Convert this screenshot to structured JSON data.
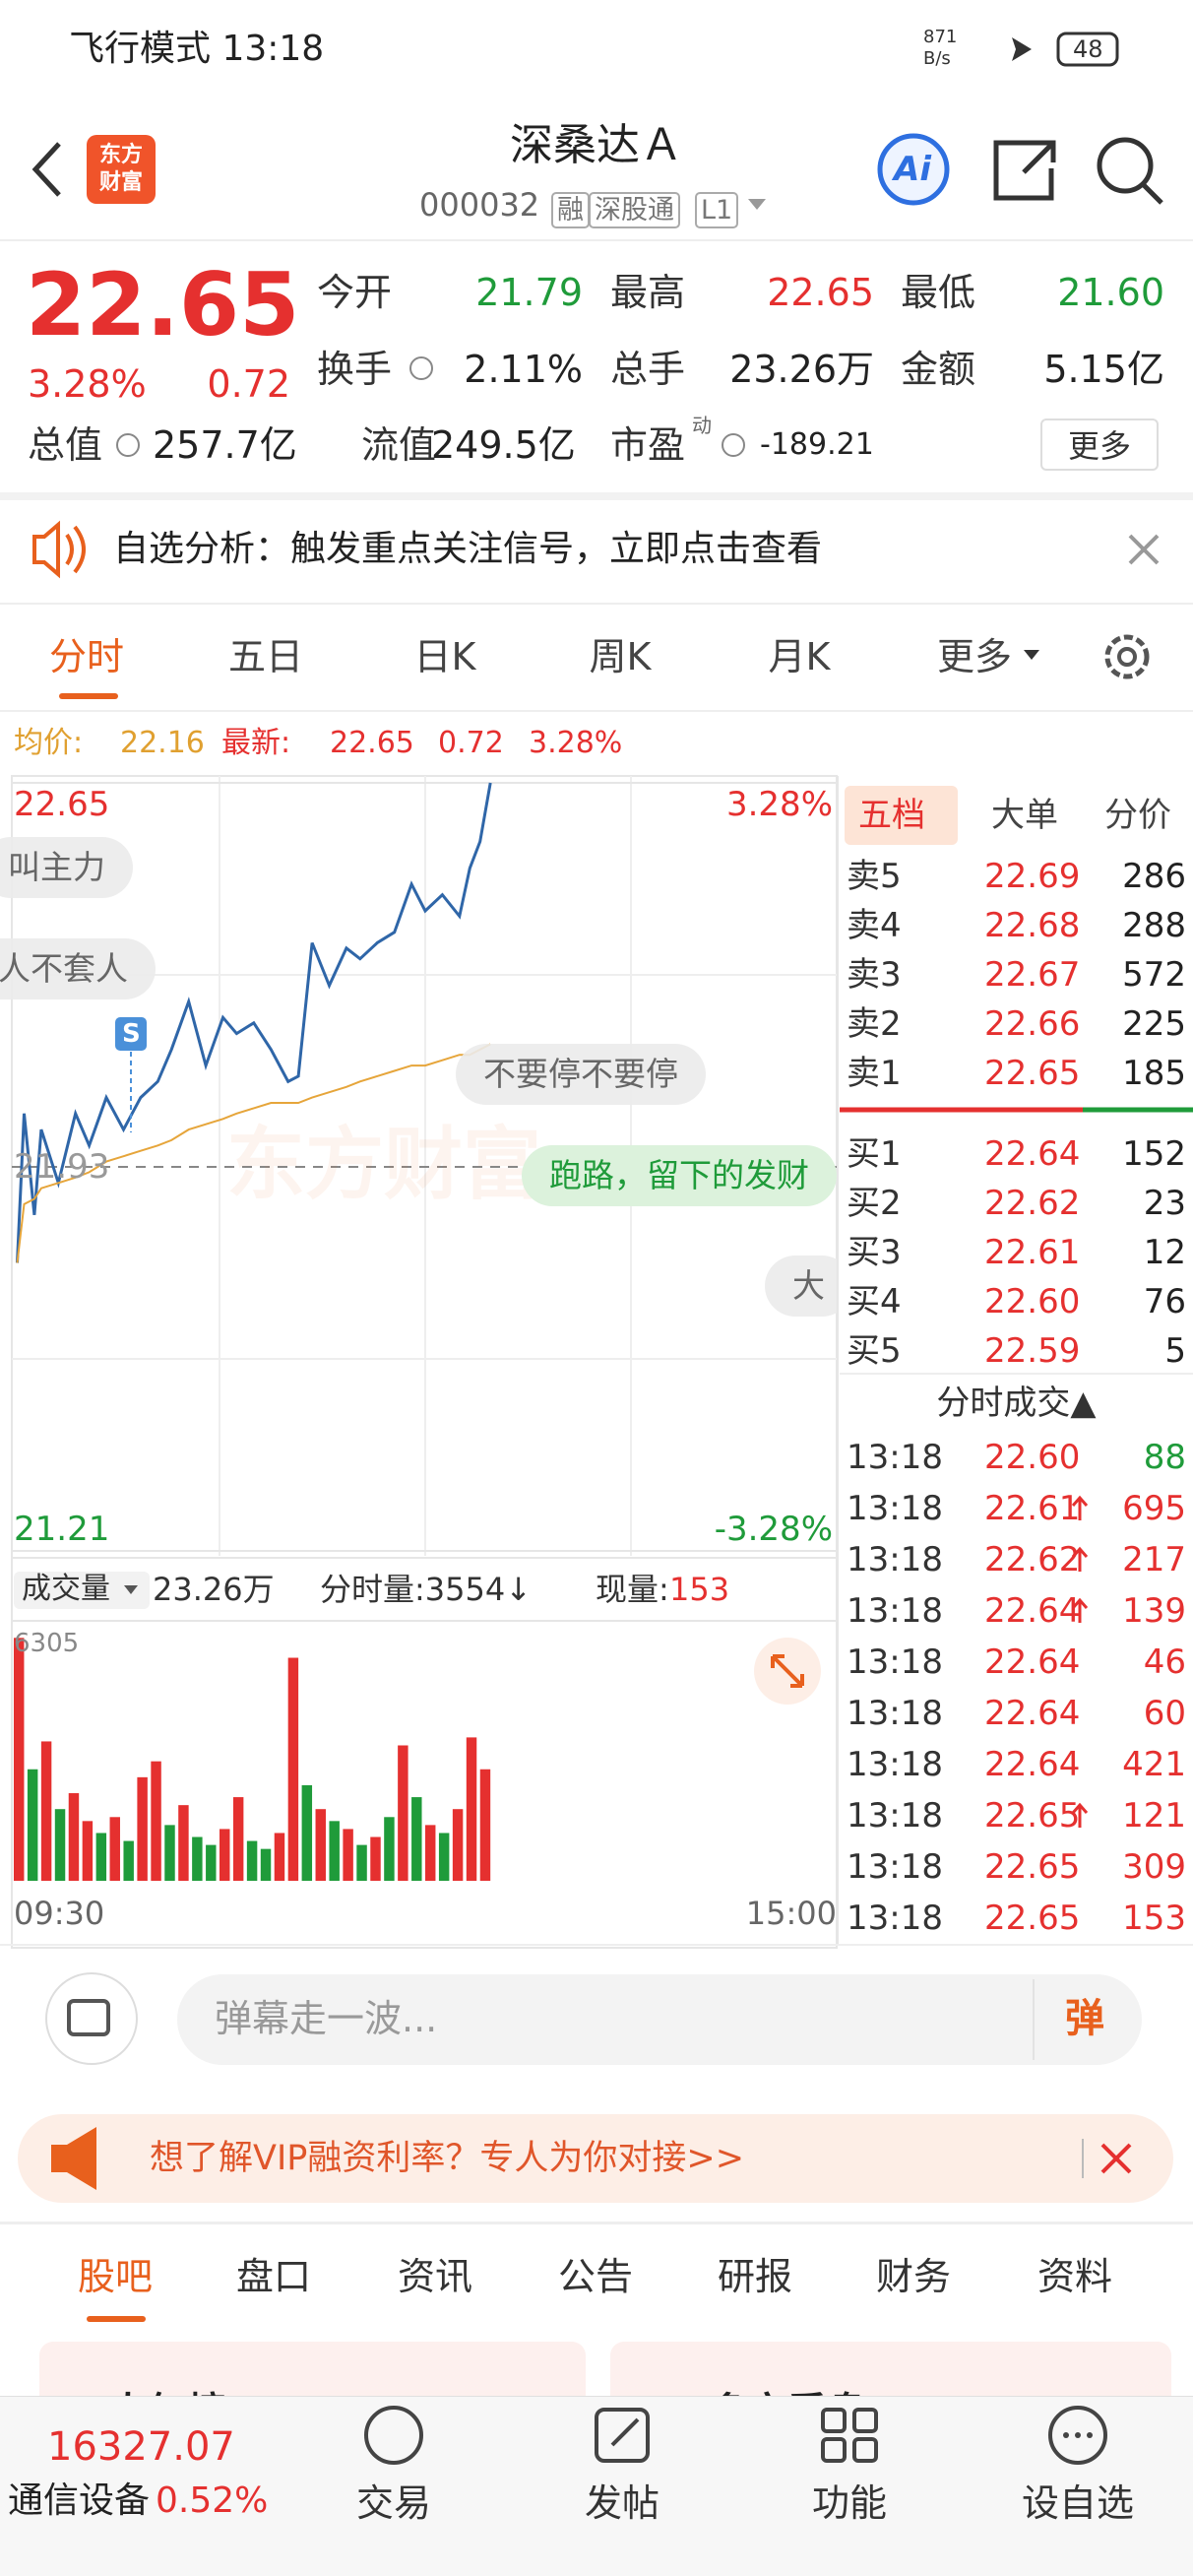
{
  "status_bar": {
    "mode_time": "飞行模式 13:18",
    "net_speed": "871",
    "net_unit": "B/s",
    "battery": "48"
  },
  "header": {
    "logo_lines": [
      "东方",
      "财富"
    ],
    "title": "深桑达Ａ",
    "code": "000032",
    "tags": [
      "融",
      "深股通",
      "L1"
    ],
    "ai": "Ai"
  },
  "quote": {
    "price": "22.65",
    "change_pct": "3.28%",
    "change": "0.72",
    "stats": [
      {
        "label": "今开",
        "value": "21.79",
        "color": "#1f9b3a"
      },
      {
        "label": "最高",
        "value": "22.65",
        "color": "#e5302f"
      },
      {
        "label": "最低",
        "value": "21.60",
        "color": "#1f9b3a"
      },
      {
        "label": "换手",
        "value": "2.11%",
        "color": "#222222"
      },
      {
        "label": "总手",
        "value": "23.26万",
        "color": "#222222"
      },
      {
        "label": "金额",
        "value": "5.15亿",
        "color": "#222222"
      },
      {
        "label": "总值",
        "value": "257.7亿",
        "color": "#222222"
      },
      {
        "label": "流值",
        "value": "249.5亿",
        "color": "#222222"
      },
      {
        "label": "市盈",
        "value": "-189.21",
        "color": "#222222"
      }
    ],
    "pe_sup": "动",
    "more": "更多"
  },
  "notice": {
    "text": "自选分析：触发重点关注信号，立即点击查看"
  },
  "tabs": [
    "分时",
    "五日",
    "日K",
    "周K",
    "月K",
    "更多"
  ],
  "info_line": {
    "avg_label": "均价:",
    "avg": "22.16",
    "latest_label": "最新:",
    "latest": "22.65",
    "change": "0.72",
    "pct": "3.28%"
  },
  "chart_overlay": {
    "watermark": "东方财富",
    "danmaku": [
      "叫主力",
      "人不套人",
      "不要停不要停",
      "跑路，留下的发财",
      "大"
    ],
    "marker": "S"
  },
  "volume_header": {
    "label": "成交量",
    "total": "23.26万",
    "minute_vol": "分时量:3554↓",
    "current_label": "现量:",
    "current": "153"
  },
  "chart_data": [
    {
      "type": "line",
      "x": [
        1,
        3,
        6,
        8,
        13,
        18,
        22,
        27,
        32,
        37,
        42,
        46,
        51,
        56,
        61,
        65,
        70,
        75,
        80,
        83,
        87,
        92,
        97,
        101,
        106,
        111,
        116,
        120,
        125,
        130,
        133,
        136,
        139
      ],
      "series": [
        {
          "color": "#2f66a8",
          "values": [
            21.75,
            22.03,
            21.84,
            22.0,
            21.9,
            22.03,
            21.97,
            22.06,
            22.0,
            22.06,
            22.09,
            22.15,
            22.24,
            22.12,
            22.21,
            22.18,
            22.2,
            22.15,
            22.09,
            22.1,
            22.35,
            22.27,
            22.34,
            22.32,
            22.35,
            22.37,
            22.46,
            22.41,
            22.44,
            22.4,
            22.49,
            22.54,
            22.65
          ]
        },
        {
          "color": "#e6a53a",
          "values": [
            21.75,
            21.86,
            21.87,
            21.89,
            21.9,
            21.91,
            21.92,
            21.94,
            21.95,
            21.96,
            21.97,
            21.98,
            22.0,
            22.01,
            22.02,
            22.03,
            22.04,
            22.05,
            22.05,
            22.05,
            22.06,
            22.07,
            22.08,
            22.09,
            22.1,
            22.11,
            22.12,
            22.12,
            22.13,
            22.14,
            22.14,
            22.15,
            22.16
          ]
        }
      ],
      "xlim": [
        0,
        240
      ],
      "ylim": [
        21.21,
        22.65
      ],
      "yticks": [
        21.21,
        21.93,
        22.65
      ],
      "y2lim": [
        -3.28,
        3.28
      ],
      "y2ticks": [
        {
          "value": -3.28,
          "label": "-3.28%"
        },
        {
          "value": 3.28,
          "label": "3.28%"
        }
      ],
      "grid": true
    },
    {
      "type": "bar",
      "x": [
        0,
        4,
        8,
        12,
        16,
        20,
        24,
        28,
        32,
        36,
        40,
        44,
        48,
        52,
        56,
        60,
        64,
        68,
        72,
        76,
        80,
        84,
        88,
        92,
        96,
        100,
        104,
        108,
        112,
        116,
        120,
        124,
        128,
        132,
        136
      ],
      "values": [
        6100,
        2800,
        3500,
        1800,
        2200,
        1500,
        1200,
        1600,
        1000,
        2600,
        3000,
        1400,
        1900,
        1100,
        900,
        1300,
        2100,
        1000,
        800,
        1200,
        5600,
        2400,
        1800,
        1500,
        1300,
        900,
        1100,
        1600,
        3400,
        2100,
        1400,
        1200,
        1800,
        3600,
        2800
      ],
      "colors": [
        "#e5302f",
        "#1f9b3a",
        "#e5302f",
        "#1f9b3a",
        "#e5302f",
        "#e5302f",
        "#1f9b3a",
        "#e5302f",
        "#1f9b3a",
        "#e5302f",
        "#e5302f",
        "#1f9b3a",
        "#e5302f",
        "#1f9b3a",
        "#1f9b3a",
        "#e5302f",
        "#e5302f",
        "#1f9b3a",
        "#1f9b3a",
        "#e5302f",
        "#e5302f",
        "#1f9b3a",
        "#e5302f",
        "#1f9b3a",
        "#e5302f",
        "#1f9b3a",
        "#e5302f",
        "#1f9b3a",
        "#e5302f",
        "#1f9b3a",
        "#e5302f",
        "#1f9b3a",
        "#e5302f",
        "#e5302f",
        "#e5302f"
      ],
      "xlim": [
        0,
        240
      ],
      "xticks": [
        {
          "value": 0,
          "label": "09:30"
        },
        {
          "value": 240,
          "label": "15:00"
        }
      ],
      "ylim": [
        0,
        6305
      ],
      "yticks": [
        6305
      ]
    }
  ],
  "order_book": {
    "tabs": [
      "五档",
      "大单",
      "分价"
    ],
    "asks": [
      {
        "label": "卖5",
        "price": "22.69",
        "volume": "286"
      },
      {
        "label": "卖4",
        "price": "22.68",
        "volume": "288"
      },
      {
        "label": "卖3",
        "price": "22.67",
        "volume": "572"
      },
      {
        "label": "卖2",
        "price": "22.66",
        "volume": "225"
      },
      {
        "label": "卖1",
        "price": "22.65",
        "volume": "185"
      }
    ],
    "bids": [
      {
        "label": "买1",
        "price": "22.64",
        "volume": "152"
      },
      {
        "label": "买2",
        "price": "22.62",
        "volume": "23"
      },
      {
        "label": "买3",
        "price": "22.61",
        "volume": "12"
      },
      {
        "label": "买4",
        "price": "22.60",
        "volume": "76"
      },
      {
        "label": "买5",
        "price": "22.59",
        "volume": "5"
      }
    ]
  },
  "trades": {
    "title": "分时成交▲",
    "rows": [
      {
        "time": "13:18",
        "price": "22.60",
        "volume": "88",
        "arrow": false,
        "color": "#1f9b3a"
      },
      {
        "time": "13:18",
        "price": "22.61",
        "volume": "695",
        "arrow": true,
        "color": "#e5302f"
      },
      {
        "time": "13:18",
        "price": "22.62",
        "volume": "217",
        "arrow": true,
        "color": "#e5302f"
      },
      {
        "time": "13:18",
        "price": "22.64",
        "volume": "139",
        "arrow": true,
        "color": "#e5302f"
      },
      {
        "time": "13:18",
        "price": "22.64",
        "volume": "46",
        "arrow": false,
        "color": "#e5302f"
      },
      {
        "time": "13:18",
        "price": "22.64",
        "volume": "60",
        "arrow": false,
        "color": "#e5302f"
      },
      {
        "time": "13:18",
        "price": "22.64",
        "volume": "421",
        "arrow": false,
        "color": "#e5302f"
      },
      {
        "time": "13:18",
        "price": "22.65",
        "volume": "121",
        "arrow": true,
        "color": "#e5302f"
      },
      {
        "time": "13:18",
        "price": "22.65",
        "volume": "309",
        "arrow": false,
        "color": "#e5302f"
      },
      {
        "time": "13:18",
        "price": "22.65",
        "volume": "153",
        "arrow": false,
        "color": "#e5302f"
      }
    ]
  },
  "input": {
    "placeholder": "弹幕走一波...",
    "button": "弹"
  },
  "banner": {
    "text": "想了解VIP融资利率？专人为你对接>>"
  },
  "bottom_tabs": [
    "股吧",
    "盘口",
    "资讯",
    "公告",
    "研报",
    "财务",
    "资料"
  ],
  "cards": [
    "人气榜",
    "多空看盘"
  ],
  "bottom_nav": {
    "index": "16327.07",
    "sector": "通信设备",
    "sector_pct": "0.52%",
    "items": [
      "交易",
      "发帖",
      "功能",
      "设自选"
    ]
  }
}
